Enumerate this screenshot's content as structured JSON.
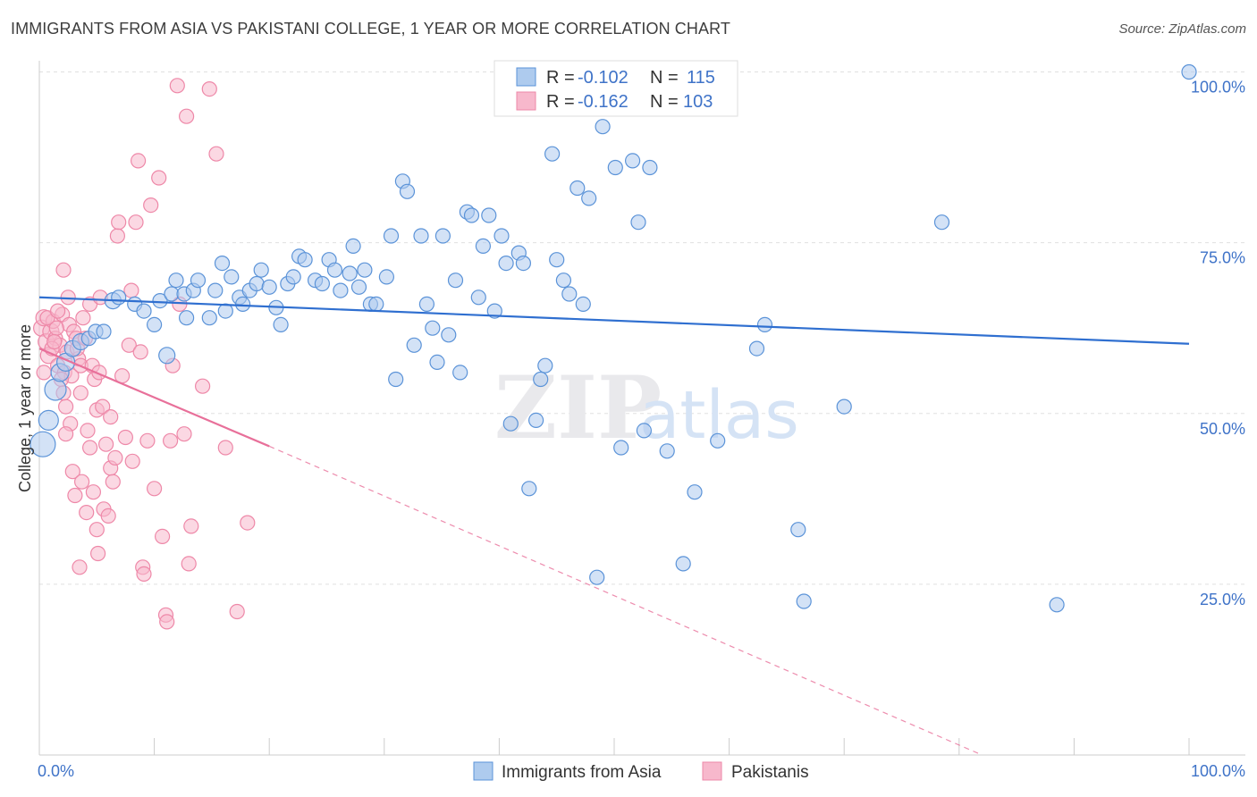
{
  "title": "IMMIGRANTS FROM ASIA VS PAKISTANI COLLEGE, 1 YEAR OR MORE CORRELATION CHART",
  "source": "Source: ZipAtlas.com",
  "watermark": {
    "zip": "ZIP",
    "atlas": "atlas"
  },
  "colors": {
    "asia_fill": "#aecbee",
    "asia_stroke": "#5b93d8",
    "asia_line": "#2f6fd0",
    "pak_fill": "#f7b8cc",
    "pak_stroke": "#ee88a8",
    "pak_line": "#e8709a",
    "grid": "#e0e0e0",
    "axis_text": "#3f73c8"
  },
  "stats_legend": {
    "asia": {
      "r_label": "R =",
      "r_value": "-0.102",
      "n_label": "N =",
      "n_value": "115"
    },
    "pak": {
      "r_label": "R =",
      "r_value": "-0.162",
      "n_label": "N =",
      "n_value": "103"
    }
  },
  "chart_data": {
    "type": "scatter",
    "title": "IMMIGRANTS FROM ASIA VS PAKISTANI COLLEGE, 1 YEAR OR MORE CORRELATION CHART",
    "xlabel": "",
    "ylabel": "College, 1 year or more",
    "xlim": [
      0,
      100
    ],
    "ylim": [
      0,
      101
    ],
    "x_tick_labels": [
      "0.0%",
      "100.0%"
    ],
    "y_ticks": [
      25,
      50,
      75,
      100
    ],
    "y_tick_labels": [
      "25.0%",
      "50.0%",
      "75.0%",
      "100.0%"
    ],
    "grid": true,
    "legend": [
      "Immigrants from Asia",
      "Pakistanis"
    ],
    "series": [
      {
        "name": "Immigrants from Asia",
        "trend": {
          "x": [
            0,
            100
          ],
          "y": [
            67.0,
            60.2
          ],
          "dashed_extension": false
        },
        "points": [
          [
            0.3,
            45.5,
            14
          ],
          [
            0.8,
            49,
            11
          ],
          [
            1.4,
            53.5,
            12
          ],
          [
            1.8,
            56,
            10
          ],
          [
            2.3,
            57.5,
            10
          ],
          [
            2.9,
            59.5,
            9
          ],
          [
            3.6,
            60.5,
            9
          ],
          [
            4.3,
            61,
            8
          ],
          [
            4.9,
            62,
            8
          ],
          [
            5.6,
            62,
            8
          ],
          [
            6.4,
            66.5,
            9
          ],
          [
            6.9,
            67,
            8
          ],
          [
            8.3,
            66,
            8
          ],
          [
            9.1,
            65,
            8
          ],
          [
            10,
            63,
            8
          ],
          [
            10.5,
            66.5,
            8
          ],
          [
            11.1,
            58.5,
            9
          ],
          [
            11.5,
            67.5,
            8
          ],
          [
            11.9,
            69.5,
            8
          ],
          [
            12.6,
            67.5,
            8
          ],
          [
            12.8,
            64,
            8
          ],
          [
            13.4,
            68,
            8
          ],
          [
            13.8,
            69.5,
            8
          ],
          [
            14.8,
            64,
            8
          ],
          [
            15.3,
            68,
            8
          ],
          [
            15.9,
            72,
            8
          ],
          [
            16.2,
            65,
            8
          ],
          [
            16.7,
            70,
            8
          ],
          [
            17.4,
            67,
            8
          ],
          [
            17.7,
            66,
            8
          ],
          [
            18.3,
            68,
            8
          ],
          [
            18.9,
            69,
            8
          ],
          [
            19.3,
            71,
            8
          ],
          [
            20,
            68.5,
            8
          ],
          [
            20.6,
            65.5,
            8
          ],
          [
            21,
            63,
            8
          ],
          [
            21.6,
            69,
            8
          ],
          [
            22.1,
            70,
            8
          ],
          [
            22.6,
            73,
            8
          ],
          [
            23.1,
            72.5,
            8
          ],
          [
            24,
            69.5,
            8
          ],
          [
            24.6,
            69,
            8
          ],
          [
            25.2,
            72.5,
            8
          ],
          [
            25.7,
            71,
            8
          ],
          [
            26.2,
            68,
            8
          ],
          [
            27,
            70.5,
            8
          ],
          [
            27.3,
            74.5,
            8
          ],
          [
            27.8,
            68.5,
            8
          ],
          [
            28.3,
            71,
            8
          ],
          [
            28.8,
            66,
            8
          ],
          [
            29.3,
            66,
            8
          ],
          [
            30.2,
            70,
            8
          ],
          [
            30.6,
            76,
            8
          ],
          [
            31,
            55,
            8
          ],
          [
            31.6,
            84,
            8
          ],
          [
            32,
            82.5,
            8
          ],
          [
            32.6,
            60,
            8
          ],
          [
            33.2,
            76,
            8
          ],
          [
            33.7,
            66,
            8
          ],
          [
            34.2,
            62.5,
            8
          ],
          [
            34.6,
            57.5,
            8
          ],
          [
            35.1,
            76,
            8
          ],
          [
            35.6,
            61.5,
            8
          ],
          [
            36.2,
            69.5,
            8
          ],
          [
            36.6,
            56,
            8
          ],
          [
            37.2,
            79.5,
            8
          ],
          [
            37.6,
            79,
            8
          ],
          [
            38.2,
            67,
            8
          ],
          [
            38.6,
            74.5,
            8
          ],
          [
            39.1,
            79,
            8
          ],
          [
            39.6,
            65,
            8
          ],
          [
            40.2,
            76,
            8
          ],
          [
            40.6,
            72,
            8
          ],
          [
            41,
            48.5,
            8
          ],
          [
            41.7,
            73.5,
            8
          ],
          [
            42.1,
            72,
            8
          ],
          [
            42.6,
            39,
            8
          ],
          [
            43.2,
            49,
            8
          ],
          [
            43.6,
            55,
            8
          ],
          [
            44,
            57,
            8
          ],
          [
            44.6,
            88,
            8
          ],
          [
            45,
            72.5,
            8
          ],
          [
            45.6,
            69.5,
            8
          ],
          [
            46.1,
            67.5,
            8
          ],
          [
            46.8,
            83,
            8
          ],
          [
            47.3,
            66,
            8
          ],
          [
            47.8,
            81.5,
            8
          ],
          [
            48.5,
            26,
            8
          ],
          [
            49,
            92,
            8
          ],
          [
            50.1,
            86,
            8
          ],
          [
            50.6,
            45,
            8
          ],
          [
            51.6,
            87,
            8
          ],
          [
            52.1,
            78,
            8
          ],
          [
            52.6,
            47.5,
            8
          ],
          [
            53.1,
            86,
            8
          ],
          [
            54.6,
            44.5,
            8
          ],
          [
            56,
            28,
            8
          ],
          [
            57,
            38.5,
            8
          ],
          [
            59,
            46,
            8
          ],
          [
            62.4,
            59.5,
            8
          ],
          [
            63.1,
            63,
            8
          ],
          [
            66,
            33,
            8
          ],
          [
            66.5,
            22.5,
            8
          ],
          [
            70,
            51,
            8
          ],
          [
            78.5,
            78,
            8
          ],
          [
            88.5,
            22,
            8
          ],
          [
            100,
            100,
            8
          ]
        ]
      },
      {
        "name": "Pakistanis",
        "trend": {
          "x": [
            0,
            20
          ],
          "y": [
            59.5,
            45.2
          ],
          "dashed_extension": true,
          "dash_to": [
            82,
            0
          ]
        },
        "points": [
          [
            0.2,
            62.5,
            9
          ],
          [
            0.4,
            64,
            9
          ],
          [
            0.6,
            60.5,
            9
          ],
          [
            0.8,
            58.5,
            9
          ],
          [
            1,
            62,
            9
          ],
          [
            1.2,
            63.5,
            8
          ],
          [
            1.4,
            61,
            8
          ],
          [
            1.6,
            57,
            8
          ],
          [
            1.8,
            60,
            8
          ],
          [
            2,
            64.5,
            8
          ],
          [
            2.2,
            56,
            8
          ],
          [
            2.4,
            59,
            8
          ],
          [
            2.6,
            63,
            8
          ],
          [
            2.8,
            55.5,
            8
          ],
          [
            3,
            62,
            8
          ],
          [
            3.2,
            61,
            8
          ],
          [
            3.4,
            58,
            8
          ],
          [
            3.6,
            57,
            8
          ],
          [
            0.4,
            56,
            8
          ],
          [
            0.7,
            64,
            8
          ],
          [
            1.1,
            59.5,
            8
          ],
          [
            1.5,
            62.5,
            8
          ],
          [
            1.9,
            55,
            8
          ],
          [
            2.3,
            51,
            8
          ],
          [
            2.7,
            48.5,
            8
          ],
          [
            1.6,
            65,
            8
          ],
          [
            1.3,
            60.5,
            8
          ],
          [
            2.1,
            71,
            8
          ],
          [
            2.5,
            67,
            8
          ],
          [
            2.9,
            41.5,
            8
          ],
          [
            3.3,
            59.5,
            8
          ],
          [
            3.6,
            53,
            8
          ],
          [
            3.8,
            64,
            8
          ],
          [
            4,
            61,
            8
          ],
          [
            4.2,
            47.5,
            8
          ],
          [
            4.4,
            66,
            8
          ],
          [
            4.6,
            57,
            8
          ],
          [
            4.8,
            55,
            8
          ],
          [
            5,
            50.5,
            8
          ],
          [
            5.2,
            56,
            8
          ],
          [
            5.3,
            67,
            8
          ],
          [
            5.6,
            36,
            8
          ],
          [
            5.8,
            45.5,
            8
          ],
          [
            6,
            35,
            8
          ],
          [
            6.2,
            42,
            8
          ],
          [
            6.4,
            40,
            8
          ],
          [
            6.6,
            43.5,
            8
          ],
          [
            6.8,
            76,
            8
          ],
          [
            6.9,
            78,
            8
          ],
          [
            7.2,
            55.5,
            8
          ],
          [
            7.5,
            46.5,
            8
          ],
          [
            7.8,
            60,
            8
          ],
          [
            8,
            68,
            8
          ],
          [
            8.1,
            43,
            8
          ],
          [
            8.4,
            78,
            8
          ],
          [
            8.6,
            87,
            8
          ],
          [
            8.8,
            59,
            8
          ],
          [
            9,
            27.5,
            8
          ],
          [
            9.1,
            26.5,
            8
          ],
          [
            9.4,
            46,
            8
          ],
          [
            9.7,
            80.5,
            8
          ],
          [
            10,
            39,
            8
          ],
          [
            10.4,
            84.5,
            8
          ],
          [
            10.7,
            32,
            8
          ],
          [
            11,
            20.5,
            8
          ],
          [
            11.1,
            19.5,
            8
          ],
          [
            11.4,
            46,
            8
          ],
          [
            11.6,
            57,
            8
          ],
          [
            12,
            98,
            8
          ],
          [
            12.2,
            66,
            8
          ],
          [
            12.6,
            47,
            8
          ],
          [
            12.8,
            93.5,
            8
          ],
          [
            13,
            28,
            8
          ],
          [
            13.2,
            33.5,
            8
          ],
          [
            14.2,
            54,
            8
          ],
          [
            14.8,
            97.5,
            8
          ],
          [
            15.4,
            88,
            8
          ],
          [
            16.2,
            45,
            8
          ],
          [
            17.2,
            21,
            8
          ],
          [
            18.1,
            34,
            8
          ],
          [
            2.1,
            53,
            8
          ],
          [
            2.3,
            47,
            8
          ],
          [
            3.1,
            38,
            8
          ],
          [
            3.5,
            27.5,
            8
          ],
          [
            3.7,
            40,
            8
          ],
          [
            4.1,
            35.5,
            8
          ],
          [
            4.4,
            45,
            8
          ],
          [
            4.7,
            38.5,
            8
          ],
          [
            5,
            33,
            8
          ],
          [
            5.1,
            29.5,
            8
          ],
          [
            5.5,
            51,
            8
          ],
          [
            6.2,
            49.5,
            8
          ]
        ]
      }
    ]
  }
}
